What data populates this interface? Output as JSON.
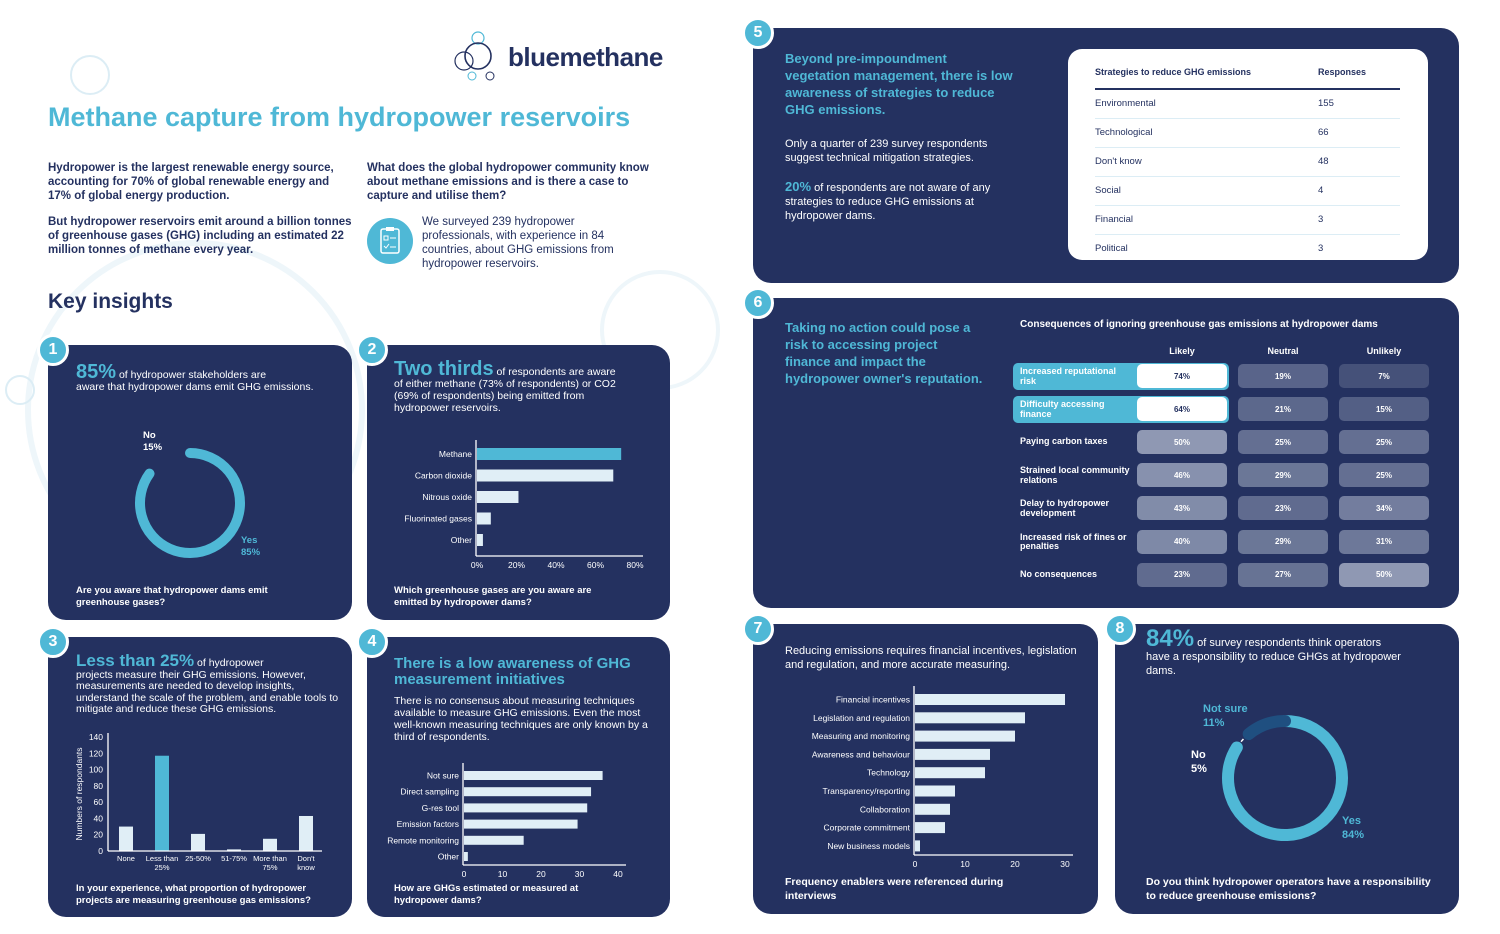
{
  "brand": {
    "name": "bluemethane"
  },
  "header": {
    "title": "Methane capture from hydropower reservoirs",
    "intro_1": "Hydropower is the largest renewable energy source, accounting for 70% of global renewable energy and 17% of global energy production.",
    "intro_2": "But hydropower reservoirs emit around a billion tonnes of greenhouse gases (GHG) including an estimated 22 million tonnes of methane every year.",
    "question": "What does the global hydropower community know about methane emissions and is there a case to capture and utilise them?",
    "survey": "We surveyed 239 hydropower professionals, with experience in 84 countries, about GHG emissions from hydropower reservoirs.",
    "survey_icon": "clipboard-checklist-icon",
    "section": "Key insights"
  },
  "colors": {
    "navy": "#243160",
    "cyan": "#4fb8d6",
    "light_bar": "#e0eef6"
  },
  "panels": {
    "p1": {
      "num": "1",
      "big": "85%",
      "text_inline": "of hydropower stakeholders are",
      "text": "aware that hydropower dams emit GHG emissions.",
      "no_label": "No",
      "no_val": "15%",
      "yes_label": "Yes",
      "yes_val": "85%",
      "question": "Are you aware that hydropower dams emit greenhouse gases?"
    },
    "p2": {
      "num": "2",
      "big": "Two thirds",
      "text_inline": "of respondents are aware",
      "text": "of either methane (73% of respondents) or CO2 (69% of respondents) being emitted from hydropower reservoirs.",
      "question": "Which greenhouse gases are you aware are emitted by hydropower dams?"
    },
    "p3": {
      "num": "3",
      "big": "Less than 25%",
      "text_inline": "of hydropower",
      "text": "projects measure their GHG emissions. However, measurements are needed to develop insights, understand the scale of the problem, and enable tools to mitigate and reduce these GHG emissions.",
      "question": "In your experience, what proportion of hydropower projects are measuring greenhouse gas emissions?"
    },
    "p4": {
      "num": "4",
      "big": "There is a low awareness of GHG measurement initiatives",
      "text": "There is no consensus about measuring techniques available to measure GHG emissions. Even the most well-known measuring techniques are only known by a third of respondents.",
      "question": "How are GHGs estimated or measured at hydropower dams?"
    },
    "p5": {
      "num": "5",
      "headline": "Beyond pre-impoundment vegetation management, there is low awareness of strategies to reduce GHG emissions.",
      "text": "Only a quarter of 239 survey respondents suggest technical mitigation strategies.",
      "big": "20%",
      "text2": "of respondents are not aware of any strategies to reduce GHG emissions at hydropower dams.",
      "table": {
        "col1": "Strategies to reduce GHG emissions",
        "col2": "Responses",
        "rows": [
          [
            "Environmental",
            "155"
          ],
          [
            "Technological",
            "66"
          ],
          [
            "Don't know",
            "48"
          ],
          [
            "Social",
            "4"
          ],
          [
            "Financial",
            "3"
          ],
          [
            "Political",
            "3"
          ]
        ]
      }
    },
    "p6": {
      "num": "6",
      "headline": "Taking no action could pose a risk to accessing project finance and impact the hydropower owner's reputation.",
      "table_title": "Consequences of ignoring greenhouse gas emissions at hydropower dams"
    },
    "p7": {
      "num": "7",
      "text": "Reducing emissions requires financial incentives, legislation and regulation, and more accurate measuring.",
      "question": "Frequency enablers were referenced during interviews"
    },
    "p8": {
      "num": "8",
      "big": "84%",
      "text_inline": "of survey respondents think operators",
      "text": "have a responsibility to reduce GHGs at hydropower dams.",
      "notsure_label": "Not sure",
      "notsure_val": "11%",
      "no_label": "No",
      "no_val": "5%",
      "yes_label": "Yes",
      "yes_val": "84%",
      "question": "Do you think hydropower operators have a responsibility to reduce greenhouse emissions?"
    }
  },
  "chart_data": [
    {
      "id": "p1",
      "type": "pie",
      "donut": true,
      "categories": [
        "Yes",
        "No"
      ],
      "values": [
        85,
        15
      ]
    },
    {
      "id": "p2",
      "type": "bar",
      "orientation": "horizontal",
      "categories": [
        "Methane",
        "Carbon dioxide",
        "Nitrous oxide",
        "Fluorinated gases",
        "Other"
      ],
      "values": [
        73,
        69,
        21,
        7,
        3
      ],
      "xlim": [
        0,
        80
      ],
      "ticks": [
        "0%",
        "20%",
        "40%",
        "60%",
        "80%"
      ],
      "highlight": "Methane"
    },
    {
      "id": "p3",
      "type": "bar",
      "categories": [
        "None",
        "Less than 25%",
        "25-50%",
        "51-75%",
        "More than 75%",
        "Don't know"
      ],
      "values": [
        30,
        117,
        21,
        2,
        15,
        43
      ],
      "ylabel": "Numbers of respondants",
      "ylim": [
        0,
        140
      ],
      "ticks": [
        "0",
        "20",
        "40",
        "60",
        "80",
        "100",
        "120",
        "140"
      ],
      "highlight": "Less than 25%"
    },
    {
      "id": "p4",
      "type": "bar",
      "orientation": "horizontal",
      "categories": [
        "Not sure",
        "Direct sampling",
        "G-res tool",
        "Emission factors",
        "Remote monitoring",
        "Other"
      ],
      "values": [
        36,
        33,
        32,
        29.5,
        15.5,
        1
      ],
      "xlim": [
        0,
        40
      ],
      "ticks": [
        "0",
        "10",
        "20",
        "30",
        "40"
      ]
    },
    {
      "id": "p6",
      "type": "table",
      "columns": [
        "Likely",
        "Neutral",
        "Unlikely"
      ],
      "rows": [
        {
          "label": "Increased reputational risk",
          "values": [
            "74%",
            "19%",
            "7%"
          ],
          "highlight": true
        },
        {
          "label": "Difficulty accessing finance",
          "values": [
            "64%",
            "21%",
            "15%"
          ],
          "highlight": true
        },
        {
          "label": "Paying carbon taxes",
          "values": [
            "50%",
            "25%",
            "25%"
          ]
        },
        {
          "label": "Strained local community relations",
          "values": [
            "46%",
            "29%",
            "25%"
          ]
        },
        {
          "label": "Delay to hydropower development",
          "values": [
            "43%",
            "23%",
            "34%"
          ]
        },
        {
          "label": "Increased risk of fines or penalties",
          "values": [
            "40%",
            "29%",
            "31%"
          ]
        },
        {
          "label": "No consequences",
          "values": [
            "23%",
            "27%",
            "50%"
          ]
        }
      ]
    },
    {
      "id": "p7",
      "type": "bar",
      "orientation": "horizontal",
      "categories": [
        "Financial incentives",
        "Legislation and regulation",
        "Measuring and monitoring",
        "Awareness and behaviour",
        "Technology",
        "Transparency/reporting",
        "Collaboration",
        "Corporate commitment",
        "New business models"
      ],
      "values": [
        30,
        22,
        20,
        15,
        14,
        8,
        7,
        6,
        1
      ],
      "xlim": [
        0,
        30
      ],
      "ticks": [
        "0",
        "10",
        "20",
        "30"
      ]
    },
    {
      "id": "p8",
      "type": "pie",
      "donut": true,
      "categories": [
        "Yes",
        "Not sure",
        "No"
      ],
      "values": [
        84,
        11,
        5
      ]
    }
  ]
}
